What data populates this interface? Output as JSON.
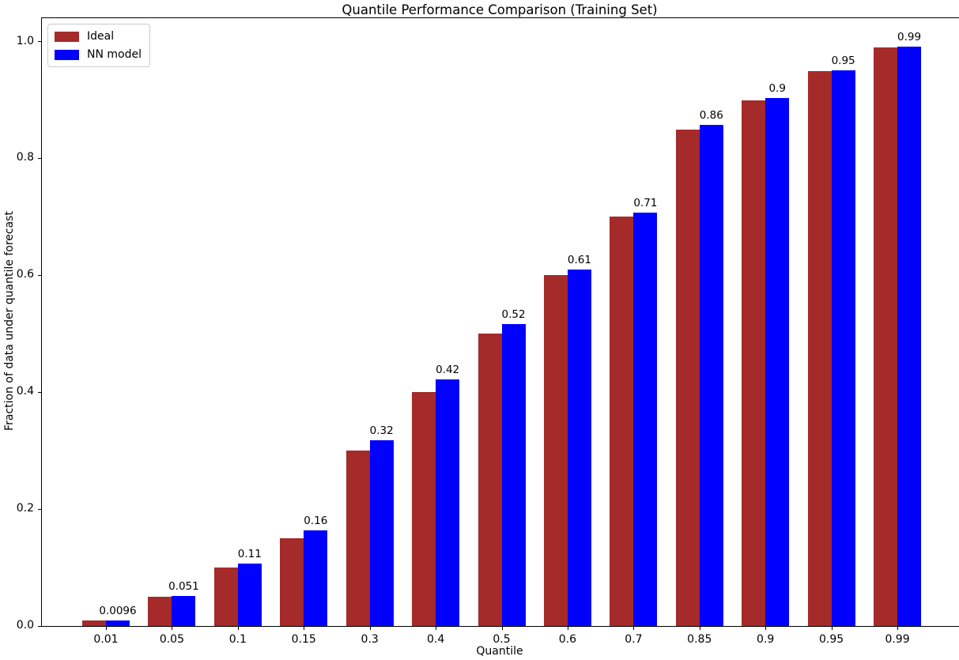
{
  "chart_data": {
    "type": "bar",
    "title": "Quantile Performance Comparison (Training Set)",
    "xlabel": "Quantile",
    "ylabel": "Fraction of data under quantile forecast",
    "categories": [
      "0.01",
      "0.05",
      "0.1",
      "0.15",
      "0.3",
      "0.4",
      "0.5",
      "0.6",
      "0.7",
      "0.85",
      "0.9",
      "0.95",
      "0.99"
    ],
    "series": [
      {
        "name": "Ideal",
        "color": "#A52A2A",
        "values": [
          0.01,
          0.05,
          0.1,
          0.15,
          0.3,
          0.4,
          0.5,
          0.6,
          0.7,
          0.85,
          0.9,
          0.95,
          0.99
        ]
      },
      {
        "name": "NN model",
        "color": "#0000FF",
        "values": [
          0.0096,
          0.051,
          0.107,
          0.163,
          0.318,
          0.422,
          0.516,
          0.61,
          0.708,
          0.857,
          0.903,
          0.951,
          0.992
        ],
        "bar_labels": [
          "0.0096",
          "0.051",
          "0.11",
          "0.16",
          "0.32",
          "0.42",
          "0.52",
          "0.61",
          "0.71",
          "0.86",
          "0.9",
          "0.95",
          "0.99"
        ]
      }
    ],
    "yticks": [
      "0.0",
      "0.2",
      "0.4",
      "0.6",
      "0.8",
      "1.0"
    ],
    "ylim": [
      0,
      1.04
    ],
    "grid": false,
    "legend_position": "upper-left",
    "background_color": "#FFFFFF",
    "axis_color": "#000000"
  }
}
